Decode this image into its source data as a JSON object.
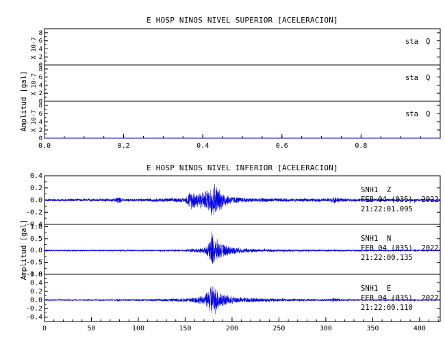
{
  "chart_data": [
    {
      "type": "line",
      "title": "E HOSP NINOS NIVEL SUPERIOR [ACELERACION]",
      "ylabel": "Amplitud [gal]",
      "xlim": [
        0,
        1.0
      ],
      "xticks": [
        "0.0",
        "0.2",
        "0.4",
        "0.6",
        "0.8"
      ],
      "xtick_values": [
        0,
        0.2,
        0.4,
        0.6,
        0.8
      ],
      "series_color": "#0000e0",
      "panels": [
        {
          "scale_label": "X 10-7",
          "ylim": [
            0,
            9
          ],
          "yticks": [
            "8",
            "6",
            "4",
            "2",
            "0"
          ],
          "ytick_values": [
            8,
            6,
            4,
            2,
            0
          ],
          "channel": "sta",
          "component": "Q",
          "date": "",
          "time": "",
          "x": [
            0.0,
            1.0
          ],
          "y": [
            0,
            0
          ]
        },
        {
          "scale_label": "X 10-7",
          "ylim": [
            0,
            9
          ],
          "yticks": [
            "8",
            "6",
            "4",
            "2",
            "0"
          ],
          "ytick_values": [
            8,
            6,
            4,
            2,
            0
          ],
          "channel": "sta",
          "component": "Q",
          "date": "",
          "time": "",
          "x": [
            0.0,
            1.0
          ],
          "y": [
            0,
            0
          ]
        },
        {
          "scale_label": "X 10-7",
          "ylim": [
            0,
            9
          ],
          "yticks": [
            "8",
            "6",
            "4",
            "2",
            "0"
          ],
          "ytick_values": [
            8,
            6,
            4,
            2,
            0
          ],
          "channel": "sta",
          "component": "Q",
          "date": "",
          "time": "",
          "x": [
            0.0,
            1.0
          ],
          "y": [
            0,
            0
          ]
        }
      ]
    },
    {
      "type": "line",
      "title": "E HOSP NINOS NIVEL INFERIOR [ACELERACION]",
      "ylabel": "Amplitud [gal]",
      "xlim": [
        0,
        422
      ],
      "xticks": [
        "0",
        "50",
        "100",
        "150",
        "200",
        "250",
        "300",
        "350",
        "400"
      ],
      "xtick_values": [
        0,
        50,
        100,
        150,
        200,
        250,
        300,
        350,
        400
      ],
      "series_color": "#0000e0",
      "panels": [
        {
          "scale_label": "",
          "ylim": [
            -0.4,
            0.4
          ],
          "yticks": [
            "0.4",
            "0.2",
            "0.0",
            "-0.2",
            "-0.4"
          ],
          "ytick_values": [
            0.4,
            0.2,
            0.0,
            -0.2,
            -0.4
          ],
          "channel": "SNH1",
          "component": "Z",
          "date": "FEB 04 (035), 2022",
          "time": "21:22:01.095",
          "x": [
            0,
            20,
            40,
            60,
            75,
            78,
            80,
            83,
            90,
            110,
            130,
            150,
            155,
            162,
            170,
            175,
            178,
            180,
            183,
            186,
            190,
            195,
            200,
            210,
            220,
            240,
            260,
            280,
            300,
            310,
            320,
            350,
            380,
            410,
            422
          ],
          "y": [
            0.02,
            0.025,
            0.025,
            0.025,
            0.03,
            0.08,
            0.05,
            0.03,
            0.025,
            0.03,
            0.035,
            0.04,
            0.17,
            0.15,
            0.15,
            0.2,
            0.33,
            0.35,
            0.28,
            0.2,
            0.15,
            0.1,
            0.07,
            0.05,
            0.04,
            0.035,
            0.03,
            0.03,
            0.03,
            0.06,
            0.03,
            0.025,
            0.025,
            0.025,
            0.025
          ]
        },
        {
          "scale_label": "",
          "ylim": [
            -1.0,
            1.1
          ],
          "yticks": [
            "1.0",
            "0.5",
            "0.0",
            "-0.5",
            "-1.0"
          ],
          "ytick_values": [
            1.0,
            0.5,
            0.0,
            -0.5,
            -1.0
          ],
          "channel": "SNH1",
          "component": "N",
          "date": "FEB 04 (035), 2022",
          "time": "21:22:00.135",
          "x": [
            0,
            50,
            100,
            150,
            158,
            165,
            172,
            176,
            178,
            180,
            183,
            186,
            190,
            195,
            200,
            210,
            220,
            230,
            250,
            280,
            310,
            340,
            380,
            422
          ],
          "y": [
            0.04,
            0.04,
            0.04,
            0.05,
            0.1,
            0.1,
            0.15,
            0.4,
            1.0,
            0.75,
            0.55,
            0.4,
            0.3,
            0.25,
            0.18,
            0.12,
            0.1,
            0.08,
            0.06,
            0.05,
            0.05,
            0.04,
            0.04,
            0.04
          ]
        },
        {
          "scale_label": "",
          "ylim": [
            -0.5,
            0.6
          ],
          "yticks": [
            "0.6",
            "0.4",
            "0.2",
            "0.0",
            "-0.2",
            "-0.4"
          ],
          "ytick_values": [
            0.6,
            0.4,
            0.2,
            0.0,
            -0.2,
            -0.4
          ],
          "channel": "SNH1",
          "component": "E",
          "date": "FEB 04 (035), 2022",
          "time": "21:22:00.110",
          "x": [
            0,
            40,
            75,
            78,
            81,
            90,
            120,
            150,
            160,
            170,
            175,
            178,
            180,
            183,
            186,
            190,
            195,
            200,
            210,
            220,
            240,
            260,
            280,
            305,
            310,
            315,
            340,
            380,
            422
          ],
          "y": [
            0.02,
            0.02,
            0.02,
            0.04,
            0.02,
            0.025,
            0.03,
            0.05,
            0.08,
            0.12,
            0.25,
            0.45,
            0.4,
            0.32,
            0.25,
            0.18,
            0.12,
            0.1,
            0.07,
            0.06,
            0.05,
            0.04,
            0.03,
            0.03,
            0.07,
            0.03,
            0.02,
            0.02,
            0.02
          ]
        }
      ]
    }
  ]
}
